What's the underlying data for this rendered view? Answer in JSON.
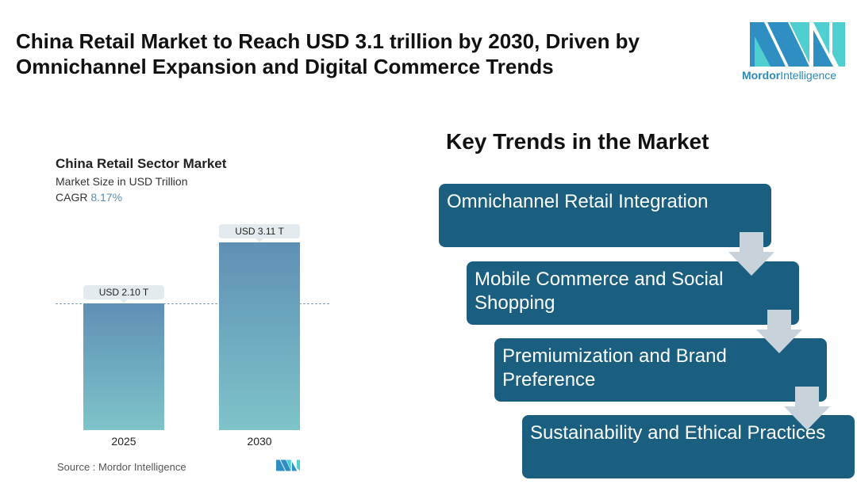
{
  "header": {
    "title": "China Retail Market to Reach USD 3.1 trillion by 2030, Driven by Omnichannel Expansion and Digital Commerce Trends",
    "logo_brand": "Mordor",
    "logo_brand2": "Intelligence"
  },
  "chart_data": {
    "type": "bar",
    "title": "China Retail Sector Market",
    "subtitle": "Market Size in USD Trillion",
    "cagr_label": "CAGR",
    "cagr_value": "8.17%",
    "categories": [
      "2025",
      "2030"
    ],
    "values": [
      2.1,
      3.11
    ],
    "value_labels": [
      "USD 2.10 T",
      "USD 3.11 T"
    ],
    "ylim": [
      0,
      3.3
    ],
    "source": "Source :  Mordor Intelligence"
  },
  "trends": {
    "title": "Key Trends in the Market",
    "items": [
      "Omnichannel Retail Integration",
      "Mobile Commerce and Social Shopping",
      "Premiumization and Brand Preference",
      "Sustainability and Ethical Practices"
    ]
  },
  "colors": {
    "box": "#1a5f80",
    "arrow": "#c8d2da",
    "accent": "#5b8fb5"
  }
}
